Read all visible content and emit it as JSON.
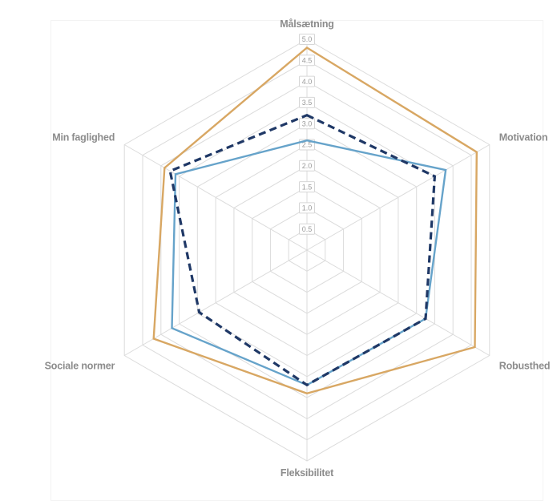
{
  "chart_data": {
    "type": "radar",
    "title": "",
    "categories": [
      "Målsætning",
      "Motivation",
      "Robusthed",
      "Fleksibilitet",
      "Sociale normer",
      "Min faglighed"
    ],
    "scale": {
      "min": 0,
      "max": 5.0,
      "step": 0.5,
      "ticks": [
        "0.5",
        "1.0",
        "1.5",
        "2.0",
        "2.5",
        "3.0",
        "3.5",
        "4.0",
        "4.5",
        "5.0"
      ]
    },
    "series": [
      {
        "name": "series-tan-solid",
        "style": "solid",
        "color": "#D8A763",
        "values": [
          4.8,
          4.65,
          4.6,
          3.4,
          4.2,
          3.9
        ]
      },
      {
        "name": "series-blue-solid",
        "style": "solid",
        "color": "#66A3CA",
        "values": [
          2.6,
          3.8,
          3.25,
          3.2,
          3.7,
          3.6
        ]
      },
      {
        "name": "series-navy-dashed",
        "style": "dashed",
        "color": "#1F3866",
        "values": [
          3.2,
          3.5,
          3.25,
          3.2,
          2.95,
          3.75
        ]
      }
    ],
    "legend": "none",
    "grid": "on",
    "grid_shape": "hexagon",
    "grid_color": "#DBDBDB",
    "axis_label_color": "#8C8C8C",
    "tick_label_color": "#9A9A9A",
    "tick_box_border_color": "#D6D6D6",
    "tick_box_fill": "#FFFFFF",
    "panel_border_color": "#F3F3F3",
    "background_color": "#FFFFFF"
  }
}
